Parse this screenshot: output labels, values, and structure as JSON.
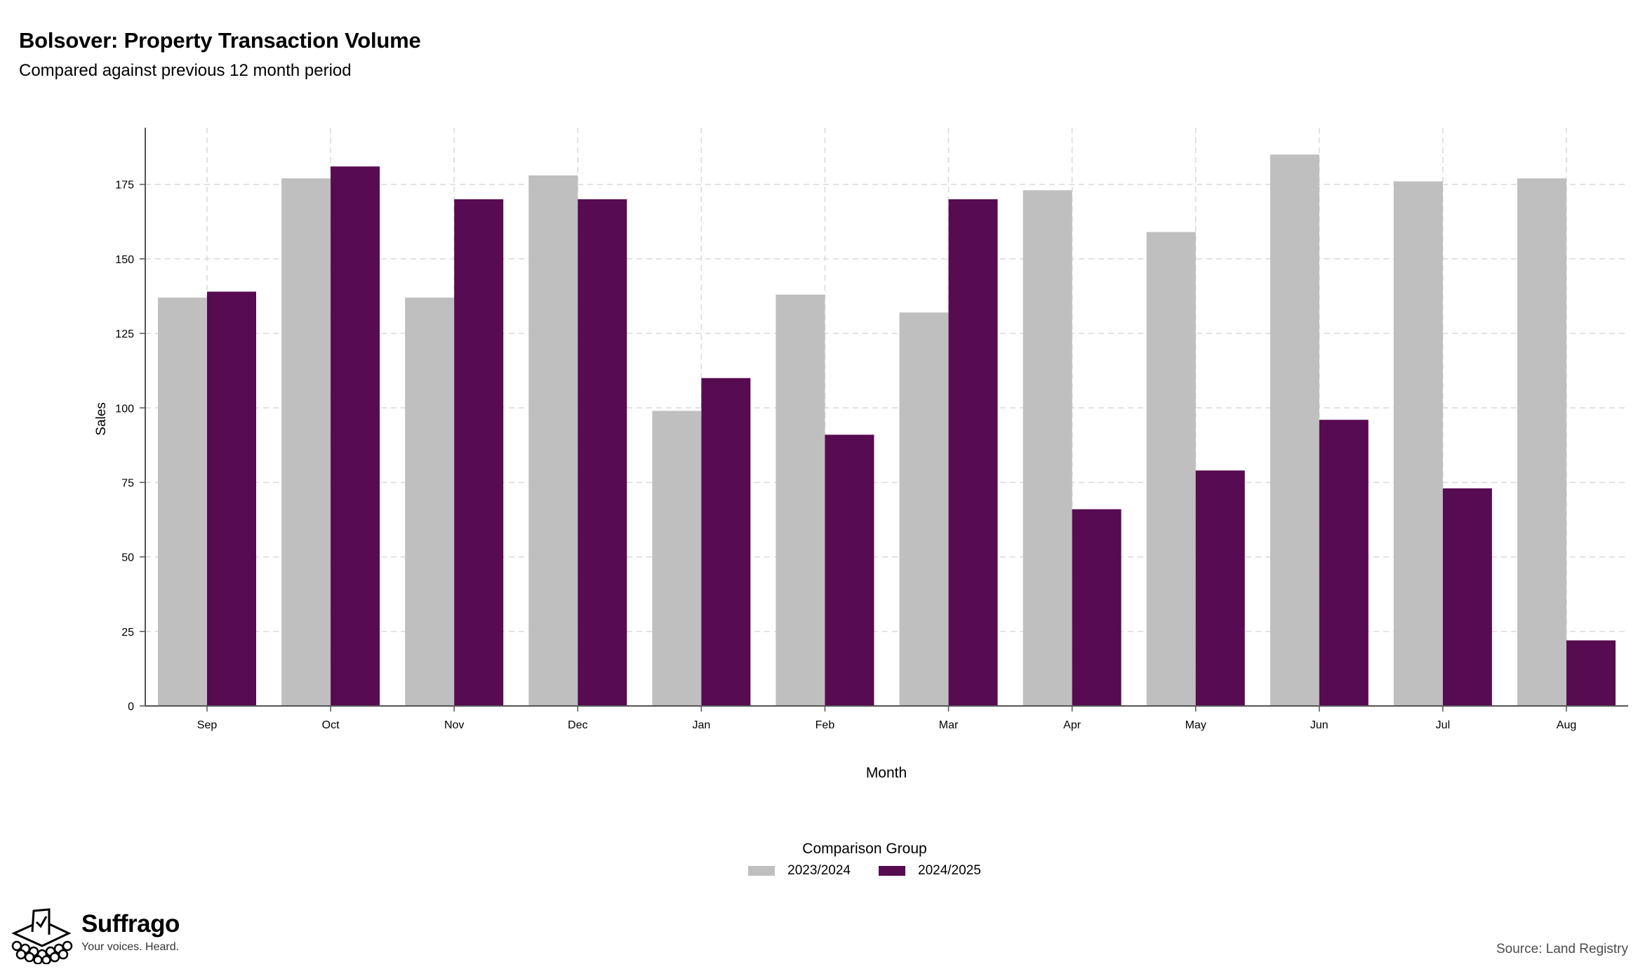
{
  "chart_data": {
    "type": "bar",
    "title": "Bolsover: Property Transaction Volume",
    "subtitle": "Compared against previous 12 month period",
    "xlabel": "Month",
    "ylabel": "Sales",
    "categories": [
      "Sep",
      "Oct",
      "Nov",
      "Dec",
      "Jan",
      "Feb",
      "Mar",
      "Apr",
      "May",
      "Jun",
      "Jul",
      "Aug"
    ],
    "series": [
      {
        "name": "2023/2024",
        "color": "#bfbfbf",
        "values": [
          137,
          177,
          137,
          178,
          99,
          138,
          132,
          173,
          159,
          185,
          176,
          177
        ]
      },
      {
        "name": "2024/2025",
        "color": "#570b50",
        "values": [
          139,
          181,
          170,
          170,
          110,
          91,
          170,
          66,
          79,
          96,
          73,
          22
        ]
      }
    ],
    "ylim": [
      0,
      194
    ],
    "yticks": [
      0,
      25,
      50,
      75,
      100,
      125,
      150,
      175
    ],
    "grid": true,
    "legend": {
      "title": "Comparison Group",
      "position": "bottom"
    }
  },
  "branding": {
    "name": "Suffrago",
    "tagline": "Your voices. Heard.",
    "logo_icon": "ballot-box-icon"
  },
  "source": "Source: Land Registry"
}
